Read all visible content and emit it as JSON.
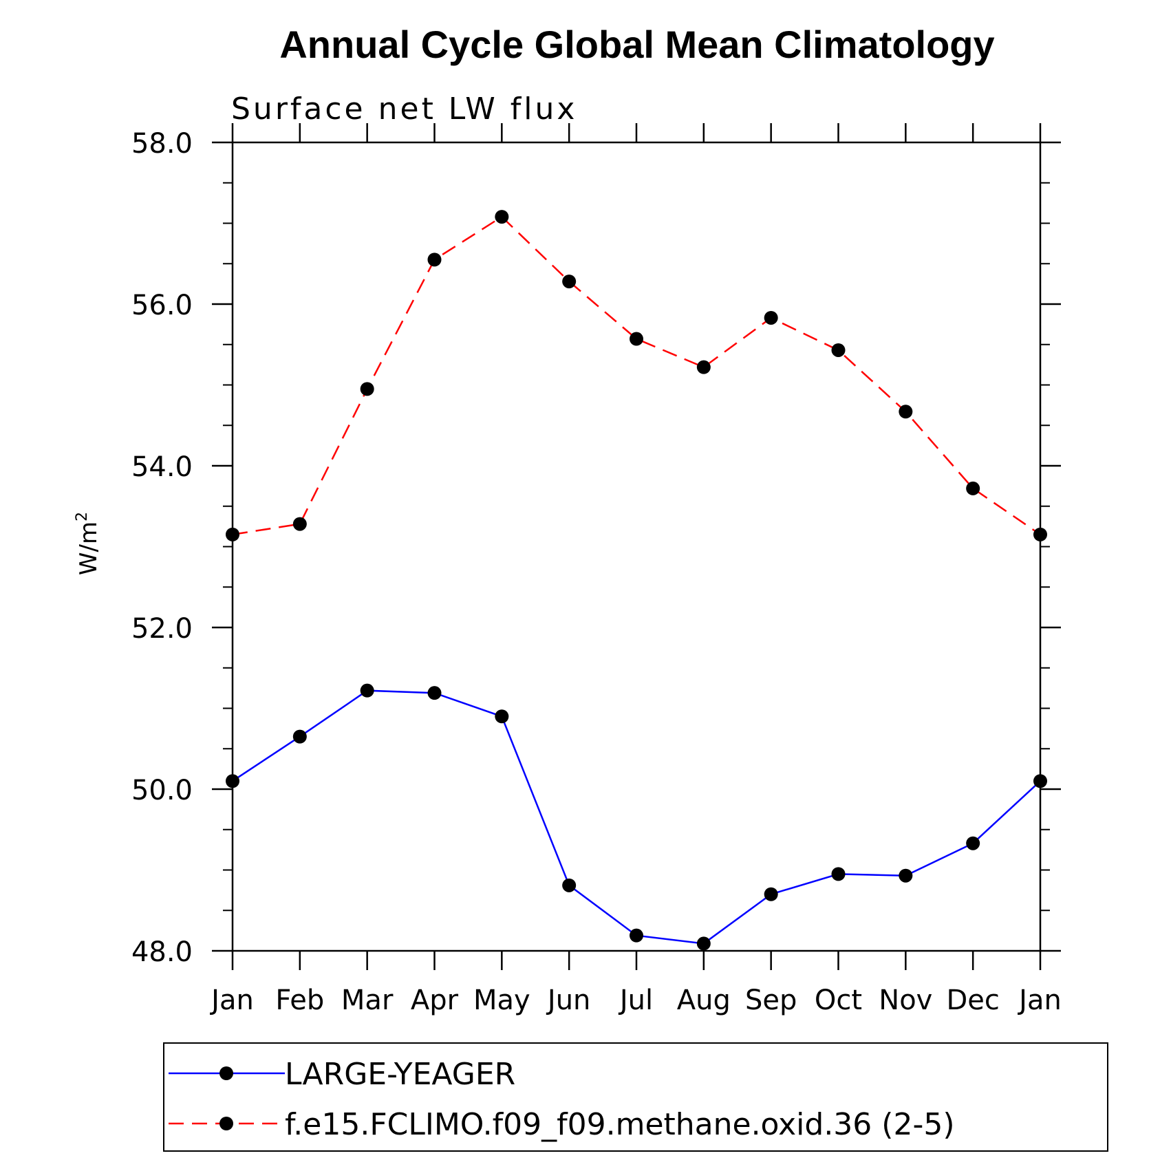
{
  "chart_data": {
    "type": "line",
    "title": "Annual Cycle Global Mean Climatology",
    "subtitle": "Surface net LW flux",
    "ylabel": "W/m",
    "ylabel_superscript": "2",
    "xlabel": "",
    "categories": [
      "Jan",
      "Feb",
      "Mar",
      "Apr",
      "May",
      "Jun",
      "Jul",
      "Aug",
      "Sep",
      "Oct",
      "Nov",
      "Dec",
      "Jan"
    ],
    "ylim": [
      48.0,
      58.0
    ],
    "yticks": [
      "48.0",
      "50.0",
      "52.0",
      "54.0",
      "56.0",
      "58.0"
    ],
    "ytick_values": [
      48,
      50,
      52,
      54,
      56,
      58
    ],
    "grid": false,
    "legend_position": "bottom",
    "series": [
      {
        "name": "LARGE-YEAGER",
        "color": "#0000ff",
        "dash": "solid",
        "marker": "circle",
        "values": [
          50.1,
          50.65,
          51.22,
          51.19,
          50.9,
          48.81,
          48.19,
          48.09,
          48.7,
          48.95,
          48.93,
          49.33,
          50.1
        ]
      },
      {
        "name": "f.e15.FCLIMO.f09_f09.methane.oxid.36 (2-5)",
        "color": "#ff0000",
        "dash": "dashed",
        "marker": "circle",
        "values": [
          53.15,
          53.28,
          54.95,
          56.55,
          57.08,
          56.28,
          55.57,
          55.22,
          55.83,
          55.43,
          54.67,
          53.72,
          53.15
        ]
      }
    ]
  }
}
